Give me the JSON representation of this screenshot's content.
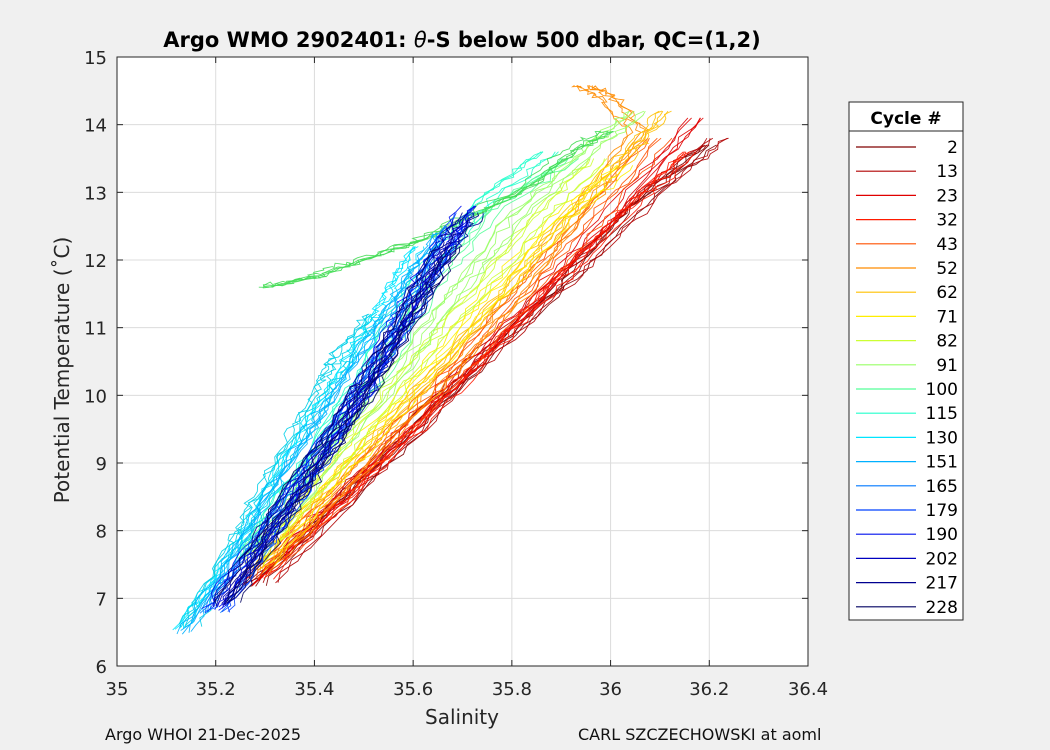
{
  "chart_data": {
    "type": "line",
    "title_prefix": "Argo WMO 2902401: ",
    "title_theta": "θ",
    "title_suffix": "-S below 500 dbar,  QC=(1,2)",
    "xlabel": "Salinity",
    "ylabel": "Potential Temperature (˚C)",
    "xlim": [
      35,
      36.4
    ],
    "ylim": [
      6,
      15
    ],
    "xticks": [
      "35",
      "35.2",
      "35.4",
      "35.6",
      "35.8",
      "36",
      "36.2",
      "36.4"
    ],
    "yticks": [
      "6",
      "7",
      "8",
      "9",
      "10",
      "11",
      "12",
      "13",
      "14",
      "15"
    ],
    "grid": true,
    "legend": {
      "title": "Cycle #",
      "placement": "right-outside",
      "entries": [
        {
          "label": "2",
          "color": "#800000"
        },
        {
          "label": "13",
          "color": "#b00000"
        },
        {
          "label": "23",
          "color": "#e00000"
        },
        {
          "label": "32",
          "color": "#ff1a00"
        },
        {
          "label": "43",
          "color": "#ff5000"
        },
        {
          "label": "52",
          "color": "#ff8c00"
        },
        {
          "label": "62",
          "color": "#ffc000"
        },
        {
          "label": "71",
          "color": "#ffee00"
        },
        {
          "label": "82",
          "color": "#ccff33"
        },
        {
          "label": "91",
          "color": "#99ff66"
        },
        {
          "label": "100",
          "color": "#55ff99"
        },
        {
          "label": "115",
          "color": "#22ffcc"
        },
        {
          "label": "130",
          "color": "#00e5ff"
        },
        {
          "label": "151",
          "color": "#00b0ff"
        },
        {
          "label": "165",
          "color": "#0078ff"
        },
        {
          "label": "179",
          "color": "#0040ff"
        },
        {
          "label": "190",
          "color": "#0010ee"
        },
        {
          "label": "202",
          "color": "#0000c0"
        },
        {
          "label": "217",
          "color": "#000090"
        },
        {
          "label": "228",
          "color": "#000060"
        }
      ]
    },
    "series": [
      {
        "color": "#800000",
        "points": [
          [
            35.28,
            7.2
          ],
          [
            35.5,
            8.7
          ],
          [
            35.7,
            10.2
          ],
          [
            35.9,
            11.6
          ],
          [
            36.05,
            12.8
          ],
          [
            36.2,
            13.7
          ]
        ]
      },
      {
        "color": "#b00000",
        "points": [
          [
            35.3,
            7.25
          ],
          [
            35.52,
            8.9
          ],
          [
            35.72,
            10.4
          ],
          [
            35.92,
            11.8
          ],
          [
            36.1,
            13.1
          ],
          [
            36.22,
            13.8
          ]
        ]
      },
      {
        "color": "#e00000",
        "points": [
          [
            35.27,
            7.2
          ],
          [
            35.48,
            8.6
          ],
          [
            35.66,
            10.0
          ],
          [
            35.84,
            11.3
          ],
          [
            36.0,
            12.6
          ],
          [
            36.18,
            14.1
          ]
        ]
      },
      {
        "color": "#ff1a00",
        "points": [
          [
            35.29,
            7.3
          ],
          [
            35.5,
            8.8
          ],
          [
            35.69,
            10.2
          ],
          [
            35.86,
            11.5
          ],
          [
            36.02,
            12.7
          ],
          [
            36.15,
            13.6
          ]
        ]
      },
      {
        "color": "#ff5000",
        "points": [
          [
            35.28,
            7.3
          ],
          [
            35.47,
            8.7
          ],
          [
            35.64,
            10.0
          ],
          [
            35.8,
            11.3
          ],
          [
            35.95,
            12.5
          ],
          [
            36.1,
            13.8
          ]
        ]
      },
      {
        "color": "#ff8c00",
        "points": [
          [
            35.3,
            7.4
          ],
          [
            35.48,
            8.8
          ],
          [
            35.66,
            10.2
          ],
          [
            35.82,
            11.5
          ],
          [
            35.96,
            12.9
          ],
          [
            36.06,
            13.9
          ],
          [
            36.0,
            14.4
          ],
          [
            35.95,
            14.58
          ]
        ]
      },
      {
        "color": "#ffc000",
        "points": [
          [
            35.29,
            7.4
          ],
          [
            35.46,
            8.8
          ],
          [
            35.62,
            10.1
          ],
          [
            35.78,
            11.4
          ],
          [
            35.92,
            12.6
          ],
          [
            36.05,
            13.6
          ],
          [
            36.12,
            14.2
          ]
        ]
      },
      {
        "color": "#ffee00",
        "points": [
          [
            35.3,
            7.5
          ],
          [
            35.45,
            8.9
          ],
          [
            35.6,
            10.1
          ],
          [
            35.75,
            11.4
          ],
          [
            35.9,
            12.6
          ],
          [
            36.02,
            13.4
          ]
        ]
      },
      {
        "color": "#ccff33",
        "points": [
          [
            35.28,
            7.5
          ],
          [
            35.44,
            8.9
          ],
          [
            35.58,
            10.2
          ],
          [
            35.72,
            11.4
          ],
          [
            35.86,
            12.6
          ],
          [
            35.98,
            13.5
          ]
        ]
      },
      {
        "color": "#99ff66",
        "points": [
          [
            35.27,
            7.6
          ],
          [
            35.42,
            9.0
          ],
          [
            35.56,
            10.3
          ],
          [
            35.68,
            11.5
          ],
          [
            35.8,
            12.6
          ],
          [
            35.95,
            13.6
          ],
          [
            36.05,
            14.2
          ]
        ]
      },
      {
        "color": "#55ff99",
        "points": [
          [
            35.26,
            7.6
          ],
          [
            35.4,
            9.0
          ],
          [
            35.54,
            10.4
          ],
          [
            35.64,
            11.6
          ],
          [
            35.76,
            12.7
          ],
          [
            35.92,
            13.5
          ]
        ]
      },
      {
        "color": "#22ffcc",
        "points": [
          [
            35.27,
            7.7
          ],
          [
            35.4,
            9.1
          ],
          [
            35.52,
            10.5
          ],
          [
            35.62,
            11.8
          ],
          [
            35.75,
            12.9
          ],
          [
            35.88,
            13.6
          ]
        ]
      },
      {
        "color": "#44dd55",
        "points": [
          [
            35.3,
            11.6
          ],
          [
            35.4,
            11.75
          ],
          [
            35.5,
            12.0
          ],
          [
            35.62,
            12.3
          ],
          [
            35.7,
            12.6
          ],
          [
            35.82,
            13.0
          ],
          [
            35.92,
            13.6
          ],
          [
            36.0,
            13.9
          ]
        ]
      },
      {
        "color": "#00e5ff",
        "points": [
          [
            35.12,
            6.55
          ],
          [
            35.22,
            7.6
          ],
          [
            35.3,
            8.6
          ],
          [
            35.38,
            9.6
          ],
          [
            35.45,
            10.4
          ],
          [
            35.5,
            11.0
          ],
          [
            35.55,
            11.6
          ],
          [
            35.6,
            12.2
          ]
        ]
      },
      {
        "color": "#00cfe8",
        "points": [
          [
            35.14,
            6.6
          ],
          [
            35.24,
            7.8
          ],
          [
            35.28,
            8.4
          ],
          [
            35.36,
            9.4
          ],
          [
            35.42,
            10.2
          ],
          [
            35.45,
            10.6
          ],
          [
            35.52,
            11.2
          ]
        ]
      },
      {
        "color": "#00b0ff",
        "points": [
          [
            35.15,
            6.5
          ],
          [
            35.26,
            7.8
          ],
          [
            35.35,
            8.9
          ],
          [
            35.44,
            9.9
          ],
          [
            35.52,
            10.8
          ],
          [
            35.6,
            11.7
          ],
          [
            35.66,
            12.4
          ]
        ]
      },
      {
        "color": "#0078ff",
        "points": [
          [
            35.19,
            6.8
          ],
          [
            35.29,
            7.8
          ],
          [
            35.38,
            8.8
          ],
          [
            35.47,
            9.8
          ],
          [
            35.55,
            10.7
          ],
          [
            35.62,
            11.6
          ],
          [
            35.68,
            12.5
          ]
        ]
      },
      {
        "color": "#0040ff",
        "points": [
          [
            35.2,
            6.8
          ],
          [
            35.3,
            7.9
          ],
          [
            35.39,
            8.9
          ],
          [
            35.48,
            9.9
          ],
          [
            35.56,
            10.9
          ],
          [
            35.63,
            11.8
          ],
          [
            35.7,
            12.7
          ]
        ]
      },
      {
        "color": "#0010ee",
        "points": [
          [
            35.2,
            6.85
          ],
          [
            35.31,
            8.0
          ],
          [
            35.4,
            9.0
          ],
          [
            35.49,
            10.0
          ],
          [
            35.57,
            11.0
          ],
          [
            35.64,
            11.9
          ],
          [
            35.72,
            12.8
          ]
        ]
      },
      {
        "color": "#0000c0",
        "points": [
          [
            35.21,
            6.9
          ],
          [
            35.32,
            8.1
          ],
          [
            35.41,
            9.1
          ],
          [
            35.5,
            10.1
          ],
          [
            35.58,
            11.1
          ],
          [
            35.65,
            12.0
          ],
          [
            35.7,
            12.6
          ]
        ]
      },
      {
        "color": "#000090",
        "points": [
          [
            35.21,
            6.9
          ],
          [
            35.32,
            8.15
          ],
          [
            35.42,
            9.2
          ],
          [
            35.51,
            10.2
          ],
          [
            35.59,
            11.2
          ],
          [
            35.66,
            12.1
          ],
          [
            35.72,
            12.7
          ]
        ]
      },
      {
        "color": "#000060",
        "points": [
          [
            35.22,
            6.95
          ],
          [
            35.33,
            8.2
          ],
          [
            35.43,
            9.3
          ],
          [
            35.52,
            10.3
          ],
          [
            35.6,
            11.3
          ],
          [
            35.67,
            12.2
          ]
        ]
      }
    ]
  },
  "footer": {
    "left": "Argo WHOI 21-Dec-2025",
    "right": "CARL SZCZECHOWSKI at aoml"
  }
}
